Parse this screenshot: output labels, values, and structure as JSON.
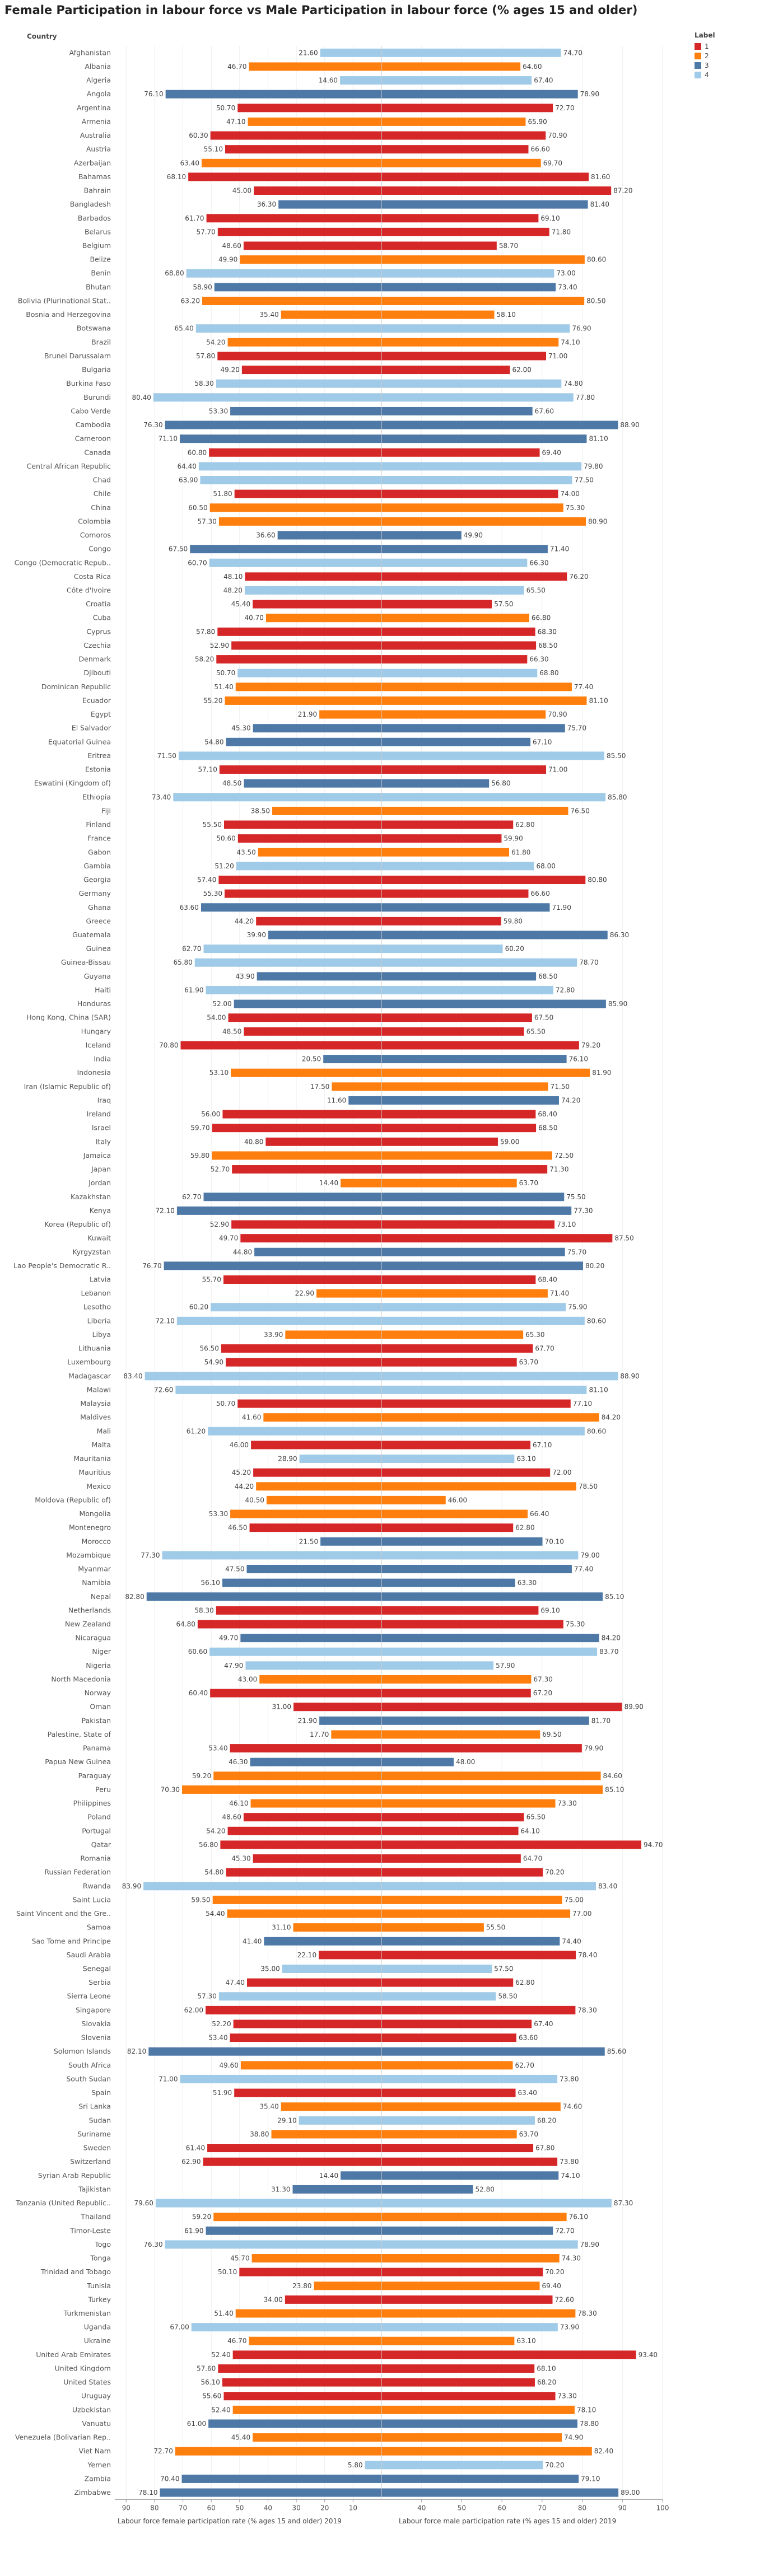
{
  "title": "Female Participation in labour force vs Male Participation in labour force (% ages 15 and older)",
  "header": {
    "country": "Country"
  },
  "legend": {
    "title": "Label",
    "items": [
      {
        "label": "1",
        "color": "#d62728"
      },
      {
        "label": "2",
        "color": "#ff7f0e"
      },
      {
        "label": "3",
        "color": "#4e79a7"
      },
      {
        "label": "4",
        "color": "#a0cbe8"
      }
    ]
  },
  "chart_data": {
    "type": "bar",
    "left_panel": {
      "xlabel": "Labour force female participation rate (% ages 15 and older) 2019",
      "ticks": [
        90,
        80,
        70,
        60,
        50,
        40,
        30,
        20,
        10
      ],
      "xlim": [
        94,
        0
      ],
      "reversed": true
    },
    "right_panel": {
      "xlabel": "Labour force male participation rate (% ages 15 and older) 2019",
      "ticks": [
        40,
        50,
        60,
        70,
        80,
        90,
        100
      ],
      "xlim": [
        30,
        100
      ]
    },
    "rows": [
      [
        "Afghanistan",
        21.6,
        74.7,
        "4"
      ],
      [
        "Albania",
        46.7,
        64.6,
        "2"
      ],
      [
        "Algeria",
        14.6,
        67.4,
        "4"
      ],
      [
        "Angola",
        76.1,
        78.9,
        "3"
      ],
      [
        "Argentina",
        50.7,
        72.7,
        "1"
      ],
      [
        "Armenia",
        47.1,
        65.9,
        "2"
      ],
      [
        "Australia",
        60.3,
        70.9,
        "1"
      ],
      [
        "Austria",
        55.1,
        66.6,
        "1"
      ],
      [
        "Azerbaijan",
        63.4,
        69.7,
        "2"
      ],
      [
        "Bahamas",
        68.1,
        81.6,
        "1"
      ],
      [
        "Bahrain",
        45.0,
        87.2,
        "1"
      ],
      [
        "Bangladesh",
        36.3,
        81.4,
        "3"
      ],
      [
        "Barbados",
        61.7,
        69.1,
        "1"
      ],
      [
        "Belarus",
        57.7,
        71.8,
        "1"
      ],
      [
        "Belgium",
        48.6,
        58.7,
        "1"
      ],
      [
        "Belize",
        49.9,
        80.6,
        "2"
      ],
      [
        "Benin",
        68.8,
        73.0,
        "4"
      ],
      [
        "Bhutan",
        58.9,
        73.4,
        "3"
      ],
      [
        "Bolivia (Plurinational Stat..",
        63.2,
        80.5,
        "2"
      ],
      [
        "Bosnia and Herzegovina",
        35.4,
        58.1,
        "2"
      ],
      [
        "Botswana",
        65.4,
        76.9,
        "4"
      ],
      [
        "Brazil",
        54.2,
        74.1,
        "2"
      ],
      [
        "Brunei Darussalam",
        57.8,
        71.0,
        "1"
      ],
      [
        "Bulgaria",
        49.2,
        62.0,
        "1"
      ],
      [
        "Burkina Faso",
        58.3,
        74.8,
        "4"
      ],
      [
        "Burundi",
        80.4,
        77.8,
        "4"
      ],
      [
        "Cabo Verde",
        53.3,
        67.6,
        "3"
      ],
      [
        "Cambodia",
        76.3,
        88.9,
        "3"
      ],
      [
        "Cameroon",
        71.1,
        81.1,
        "3"
      ],
      [
        "Canada",
        60.8,
        69.4,
        "1"
      ],
      [
        "Central African Republic",
        64.4,
        79.8,
        "4"
      ],
      [
        "Chad",
        63.9,
        77.5,
        "4"
      ],
      [
        "Chile",
        51.8,
        74.0,
        "1"
      ],
      [
        "China",
        60.5,
        75.3,
        "2"
      ],
      [
        "Colombia",
        57.3,
        80.9,
        "2"
      ],
      [
        "Comoros",
        36.6,
        49.9,
        "3"
      ],
      [
        "Congo",
        67.5,
        71.4,
        "3"
      ],
      [
        "Congo (Democratic Repub..",
        60.7,
        66.3,
        "4"
      ],
      [
        "Costa Rica",
        48.1,
        76.2,
        "1"
      ],
      [
        "Côte d'Ivoire",
        48.2,
        65.5,
        "4"
      ],
      [
        "Croatia",
        45.4,
        57.5,
        "1"
      ],
      [
        "Cuba",
        40.7,
        66.8,
        "2"
      ],
      [
        "Cyprus",
        57.8,
        68.3,
        "1"
      ],
      [
        "Czechia",
        52.9,
        68.5,
        "1"
      ],
      [
        "Denmark",
        58.2,
        66.3,
        "1"
      ],
      [
        "Djibouti",
        50.7,
        68.8,
        "4"
      ],
      [
        "Dominican Republic",
        51.4,
        77.4,
        "2"
      ],
      [
        "Ecuador",
        55.2,
        81.1,
        "2"
      ],
      [
        "Egypt",
        21.9,
        70.9,
        "2"
      ],
      [
        "El Salvador",
        45.3,
        75.7,
        "3"
      ],
      [
        "Equatorial Guinea",
        54.8,
        67.1,
        "3"
      ],
      [
        "Eritrea",
        71.5,
        85.5,
        "4"
      ],
      [
        "Estonia",
        57.1,
        71.0,
        "1"
      ],
      [
        "Eswatini (Kingdom of)",
        48.5,
        56.8,
        "3"
      ],
      [
        "Ethiopia",
        73.4,
        85.8,
        "4"
      ],
      [
        "Fiji",
        38.5,
        76.5,
        "2"
      ],
      [
        "Finland",
        55.5,
        62.8,
        "1"
      ],
      [
        "France",
        50.6,
        59.9,
        "1"
      ],
      [
        "Gabon",
        43.5,
        61.8,
        "2"
      ],
      [
        "Gambia",
        51.2,
        68.0,
        "4"
      ],
      [
        "Georgia",
        57.4,
        80.8,
        "1"
      ],
      [
        "Germany",
        55.3,
        66.6,
        "1"
      ],
      [
        "Ghana",
        63.6,
        71.9,
        "3"
      ],
      [
        "Greece",
        44.2,
        59.8,
        "1"
      ],
      [
        "Guatemala",
        39.9,
        86.3,
        "3"
      ],
      [
        "Guinea",
        62.7,
        60.2,
        "4"
      ],
      [
        "Guinea-Bissau",
        65.8,
        78.7,
        "4"
      ],
      [
        "Guyana",
        43.9,
        68.5,
        "3"
      ],
      [
        "Haiti",
        61.9,
        72.8,
        "4"
      ],
      [
        "Honduras",
        52.0,
        85.9,
        "3"
      ],
      [
        "Hong Kong, China (SAR)",
        54.0,
        67.5,
        "1"
      ],
      [
        "Hungary",
        48.5,
        65.5,
        "1"
      ],
      [
        "Iceland",
        70.8,
        79.2,
        "1"
      ],
      [
        "India",
        20.5,
        76.1,
        "3"
      ],
      [
        "Indonesia",
        53.1,
        81.9,
        "2"
      ],
      [
        "Iran (Islamic Republic of)",
        17.5,
        71.5,
        "2"
      ],
      [
        "Iraq",
        11.6,
        74.2,
        "3"
      ],
      [
        "Ireland",
        56.0,
        68.4,
        "1"
      ],
      [
        "Israel",
        59.7,
        68.5,
        "1"
      ],
      [
        "Italy",
        40.8,
        59.0,
        "1"
      ],
      [
        "Jamaica",
        59.8,
        72.5,
        "2"
      ],
      [
        "Japan",
        52.7,
        71.3,
        "1"
      ],
      [
        "Jordan",
        14.4,
        63.7,
        "2"
      ],
      [
        "Kazakhstan",
        62.7,
        75.5,
        "3"
      ],
      [
        "Kenya",
        72.1,
        77.3,
        "3"
      ],
      [
        "Korea (Republic of)",
        52.9,
        73.1,
        "1"
      ],
      [
        "Kuwait",
        49.7,
        87.5,
        "1"
      ],
      [
        "Kyrgyzstan",
        44.8,
        75.7,
        "3"
      ],
      [
        "Lao People's Democratic R..",
        76.7,
        80.2,
        "3"
      ],
      [
        "Latvia",
        55.7,
        68.4,
        "1"
      ],
      [
        "Lebanon",
        22.9,
        71.4,
        "2"
      ],
      [
        "Lesotho",
        60.2,
        75.9,
        "4"
      ],
      [
        "Liberia",
        72.1,
        80.6,
        "4"
      ],
      [
        "Libya",
        33.9,
        65.3,
        "2"
      ],
      [
        "Lithuania",
        56.5,
        67.7,
        "1"
      ],
      [
        "Luxembourg",
        54.9,
        63.7,
        "1"
      ],
      [
        "Madagascar",
        83.4,
        88.9,
        "4"
      ],
      [
        "Malawi",
        72.6,
        81.1,
        "4"
      ],
      [
        "Malaysia",
        50.7,
        77.1,
        "1"
      ],
      [
        "Maldives",
        41.6,
        84.2,
        "2"
      ],
      [
        "Mali",
        61.2,
        80.6,
        "4"
      ],
      [
        "Malta",
        46.0,
        67.1,
        "1"
      ],
      [
        "Mauritania",
        28.9,
        63.1,
        "4"
      ],
      [
        "Mauritius",
        45.2,
        72.0,
        "1"
      ],
      [
        "Mexico",
        44.2,
        78.5,
        "2"
      ],
      [
        "Moldova (Republic of)",
        40.5,
        46.0,
        "2"
      ],
      [
        "Mongolia",
        53.3,
        66.4,
        "2"
      ],
      [
        "Montenegro",
        46.5,
        62.8,
        "1"
      ],
      [
        "Morocco",
        21.5,
        70.1,
        "3"
      ],
      [
        "Mozambique",
        77.3,
        79.0,
        "4"
      ],
      [
        "Myanmar",
        47.5,
        77.4,
        "3"
      ],
      [
        "Namibia",
        56.1,
        63.3,
        "3"
      ],
      [
        "Nepal",
        82.8,
        85.1,
        "3"
      ],
      [
        "Netherlands",
        58.3,
        69.1,
        "1"
      ],
      [
        "New Zealand",
        64.8,
        75.3,
        "1"
      ],
      [
        "Nicaragua",
        49.7,
        84.2,
        "3"
      ],
      [
        "Niger",
        60.6,
        83.7,
        "4"
      ],
      [
        "Nigeria",
        47.9,
        57.9,
        "4"
      ],
      [
        "North Macedonia",
        43.0,
        67.3,
        "2"
      ],
      [
        "Norway",
        60.4,
        67.2,
        "1"
      ],
      [
        "Oman",
        31.0,
        89.9,
        "1"
      ],
      [
        "Pakistan",
        21.9,
        81.7,
        "3"
      ],
      [
        "Palestine, State of",
        17.7,
        69.5,
        "2"
      ],
      [
        "Panama",
        53.4,
        79.9,
        "1"
      ],
      [
        "Papua New Guinea",
        46.3,
        48.0,
        "3"
      ],
      [
        "Paraguay",
        59.2,
        84.6,
        "2"
      ],
      [
        "Peru",
        70.3,
        85.1,
        "2"
      ],
      [
        "Philippines",
        46.1,
        73.3,
        "2"
      ],
      [
        "Poland",
        48.6,
        65.5,
        "1"
      ],
      [
        "Portugal",
        54.2,
        64.1,
        "1"
      ],
      [
        "Qatar",
        56.8,
        94.7,
        "1"
      ],
      [
        "Romania",
        45.3,
        64.7,
        "1"
      ],
      [
        "Russian Federation",
        54.8,
        70.2,
        "1"
      ],
      [
        "Rwanda",
        83.9,
        83.4,
        "4"
      ],
      [
        "Saint Lucia",
        59.5,
        75.0,
        "2"
      ],
      [
        "Saint Vincent and the Gre..",
        54.4,
        77.0,
        "2"
      ],
      [
        "Samoa",
        31.1,
        55.5,
        "2"
      ],
      [
        "Sao Tome and Principe",
        41.4,
        74.4,
        "3"
      ],
      [
        "Saudi Arabia",
        22.1,
        78.4,
        "1"
      ],
      [
        "Senegal",
        35.0,
        57.5,
        "4"
      ],
      [
        "Serbia",
        47.4,
        62.8,
        "1"
      ],
      [
        "Sierra Leone",
        57.3,
        58.5,
        "4"
      ],
      [
        "Singapore",
        62.0,
        78.3,
        "1"
      ],
      [
        "Slovakia",
        52.2,
        67.4,
        "1"
      ],
      [
        "Slovenia",
        53.4,
        63.6,
        "1"
      ],
      [
        "Solomon Islands",
        82.1,
        85.6,
        "3"
      ],
      [
        "South Africa",
        49.6,
        62.7,
        "2"
      ],
      [
        "South Sudan",
        71.0,
        73.8,
        "4"
      ],
      [
        "Spain",
        51.9,
        63.4,
        "1"
      ],
      [
        "Sri Lanka",
        35.4,
        74.6,
        "2"
      ],
      [
        "Sudan",
        29.1,
        68.2,
        "4"
      ],
      [
        "Suriname",
        38.8,
        63.7,
        "2"
      ],
      [
        "Sweden",
        61.4,
        67.8,
        "1"
      ],
      [
        "Switzerland",
        62.9,
        73.8,
        "1"
      ],
      [
        "Syrian Arab Republic",
        14.4,
        74.1,
        "3"
      ],
      [
        "Tajikistan",
        31.3,
        52.8,
        "3"
      ],
      [
        "Tanzania (United Republic..",
        79.6,
        87.3,
        "4"
      ],
      [
        "Thailand",
        59.2,
        76.1,
        "2"
      ],
      [
        "Timor-Leste",
        61.9,
        72.7,
        "3"
      ],
      [
        "Togo",
        76.3,
        78.9,
        "4"
      ],
      [
        "Tonga",
        45.7,
        74.3,
        "2"
      ],
      [
        "Trinidad and Tobago",
        50.1,
        70.2,
        "1"
      ],
      [
        "Tunisia",
        23.8,
        69.4,
        "2"
      ],
      [
        "Turkey",
        34.0,
        72.6,
        "1"
      ],
      [
        "Turkmenistan",
        51.4,
        78.3,
        "2"
      ],
      [
        "Uganda",
        67.0,
        73.9,
        "4"
      ],
      [
        "Ukraine",
        46.7,
        63.1,
        "2"
      ],
      [
        "United Arab Emirates",
        52.4,
        93.4,
        "1"
      ],
      [
        "United Kingdom",
        57.6,
        68.1,
        "1"
      ],
      [
        "United States",
        56.1,
        68.2,
        "1"
      ],
      [
        "Uruguay",
        55.6,
        73.3,
        "1"
      ],
      [
        "Uzbekistan",
        52.4,
        78.1,
        "2"
      ],
      [
        "Vanuatu",
        61.0,
        78.8,
        "3"
      ],
      [
        "Venezuela (Bolivarian Rep..",
        45.4,
        74.9,
        "2"
      ],
      [
        "Viet Nam",
        72.7,
        82.4,
        "2"
      ],
      [
        "Yemen",
        5.8,
        70.2,
        "4"
      ],
      [
        "Zambia",
        70.4,
        79.1,
        "3"
      ],
      [
        "Zimbabwe",
        78.1,
        89.0,
        "3"
      ]
    ]
  }
}
